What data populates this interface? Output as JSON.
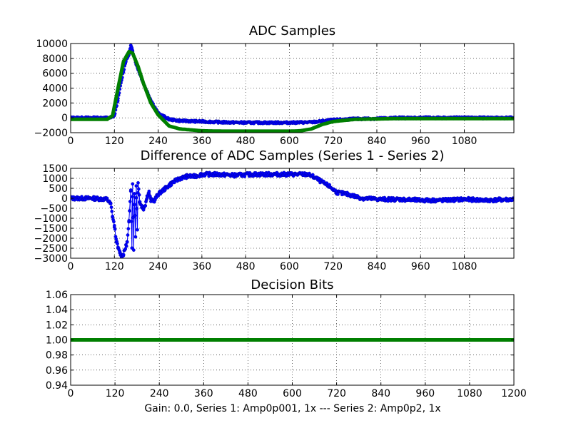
{
  "figure_xlabel": "Gain: 0.0, Series 1: Amp0p001, 1x --- Series 2: Amp0p2, 1x",
  "colors": {
    "series1": "#0000ff",
    "series2": "#007f00"
  },
  "chart_data": [
    {
      "type": "scatter",
      "title": "ADC Samples",
      "xlim": [
        0,
        1216
      ],
      "ylim": [
        -2000,
        10000
      ],
      "xticks": [
        0,
        120,
        240,
        360,
        480,
        600,
        720,
        840,
        960,
        1080
      ],
      "yticks": [
        -2000,
        0,
        2000,
        4000,
        6000,
        8000,
        10000
      ],
      "xtick_labels": [
        "0",
        "120",
        "240",
        "360",
        "480",
        "600",
        "720",
        "840",
        "960",
        "1080"
      ],
      "ytick_labels": [
        "−2000",
        "0",
        "2000",
        "4000",
        "6000",
        "8000",
        "10000"
      ],
      "grid": true,
      "series": [
        {
          "name": "Series 1",
          "style": "dots-blue",
          "x": [
            0,
            60,
            110,
            120,
            130,
            140,
            150,
            160,
            165,
            170,
            180,
            200,
            220,
            240,
            270,
            300,
            360,
            420,
            480,
            540,
            600,
            660,
            720,
            780,
            840,
            900,
            960,
            1020,
            1080,
            1140,
            1216
          ],
          "y": [
            0,
            0,
            0,
            300,
            2500,
            5200,
            7400,
            8600,
            9700,
            9000,
            7200,
            4600,
            2400,
            600,
            -200,
            -400,
            -500,
            -600,
            -650,
            -650,
            -650,
            -600,
            -300,
            -150,
            -100,
            0,
            0,
            0,
            0,
            0,
            0
          ]
        },
        {
          "name": "Series 2",
          "style": "thick-green",
          "x": [
            0,
            100,
            115,
            130,
            145,
            160,
            170,
            185,
            200,
            220,
            240,
            270,
            300,
            360,
            420,
            480,
            540,
            600,
            630,
            660,
            690,
            720,
            780,
            840,
            900,
            960,
            1020,
            1080,
            1140,
            1216
          ],
          "y": [
            -200,
            -200,
            300,
            4000,
            7600,
            8900,
            8700,
            6900,
            4600,
            2000,
            400,
            -1100,
            -1500,
            -1750,
            -1800,
            -1800,
            -1800,
            -1800,
            -1750,
            -1500,
            -900,
            -500,
            -200,
            -150,
            -100,
            -100,
            -100,
            -100,
            -100,
            -100
          ]
        }
      ]
    },
    {
      "type": "scatter",
      "title": "Difference of ADC Samples (Series 1 - Series 2)",
      "xlim": [
        0,
        1216
      ],
      "ylim": [
        -3000,
        1500
      ],
      "xticks": [
        0,
        120,
        240,
        360,
        480,
        600,
        720,
        840,
        960,
        1080
      ],
      "yticks": [
        -3000,
        -2500,
        -2000,
        -1500,
        -1000,
        -500,
        0,
        500,
        1000,
        1500
      ],
      "xtick_labels": [
        "0",
        "120",
        "240",
        "360",
        "480",
        "600",
        "720",
        "840",
        "960",
        "1080"
      ],
      "ytick_labels": [
        "−3000",
        "−2500",
        "−2000",
        "−1500",
        "−1000",
        "−500",
        "0",
        "500",
        "1000",
        "1500"
      ],
      "grid": true,
      "series": [
        {
          "name": "Series 1 - Series 2",
          "style": "dots-line-blue",
          "x": [
            0,
            60,
            100,
            110,
            115,
            120,
            125,
            130,
            135,
            140,
            145,
            150,
            155,
            160,
            165,
            168,
            170,
            173,
            175,
            178,
            180,
            183,
            185,
            190,
            195,
            200,
            205,
            210,
            215,
            220,
            230,
            240,
            260,
            280,
            300,
            320,
            340,
            360,
            400,
            450,
            500,
            550,
            600,
            650,
            670,
            690,
            710,
            730,
            760,
            800,
            850,
            900,
            960,
            1020,
            1080,
            1140,
            1216
          ],
          "y": [
            0,
            0,
            -50,
            -300,
            -900,
            -1400,
            -2100,
            -2500,
            -2700,
            -2900,
            -2800,
            -2500,
            -2200,
            -1200,
            500,
            -2500,
            800,
            -2600,
            300,
            -1900,
            600,
            -1500,
            800,
            -200,
            -400,
            -500,
            -300,
            100,
            300,
            -100,
            -100,
            200,
            500,
            800,
            1000,
            1100,
            1100,
            1200,
            1200,
            1150,
            1200,
            1200,
            1200,
            1200,
            1050,
            800,
            600,
            300,
            200,
            0,
            -50,
            -50,
            -100,
            -100,
            -50,
            -100,
            -50
          ]
        }
      ]
    },
    {
      "type": "line",
      "title": "Decision Bits",
      "xlim": [
        0,
        1200
      ],
      "ylim": [
        0.94,
        1.06
      ],
      "xticks": [
        0,
        120,
        240,
        360,
        480,
        600,
        720,
        840,
        960,
        1080,
        1200
      ],
      "yticks": [
        0.94,
        0.96,
        0.98,
        1.0,
        1.02,
        1.04,
        1.06
      ],
      "xtick_labels": [
        "0",
        "120",
        "240",
        "360",
        "480",
        "600",
        "720",
        "840",
        "960",
        "1080",
        "1200"
      ],
      "ytick_labels": [
        "0.94",
        "0.96",
        "0.98",
        "1.00",
        "1.02",
        "1.04",
        "1.06"
      ],
      "grid": true,
      "series": [
        {
          "name": "Decision",
          "style": "thick-green",
          "x": [
            0,
            1200
          ],
          "y": [
            1.0,
            1.0
          ]
        }
      ]
    }
  ]
}
